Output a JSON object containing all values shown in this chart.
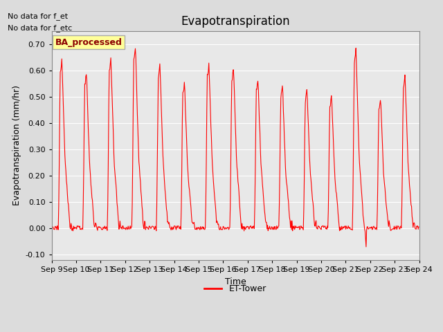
{
  "title": "Evapotranspiration",
  "ylabel": "Evapotranspiration (mm/hr)",
  "xlabel": "Time",
  "ylim": [
    -0.12,
    0.75
  ],
  "yticks": [
    -0.1,
    0.0,
    0.1,
    0.2,
    0.3,
    0.4,
    0.5,
    0.6,
    0.7
  ],
  "start_day": 9,
  "end_day": 24,
  "line_color": "#FF0000",
  "bg_color": "#E8E8E8",
  "fig_bg": "#DCDCDC",
  "no_data_text1": "No data for f_et",
  "no_data_text2": "No data for f_etc",
  "ba_label": "BA_processed",
  "legend_label": "ET-Tower",
  "daily_peaks": [
    0.65,
    0.6,
    0.65,
    0.7,
    0.63,
    0.56,
    0.63,
    0.62,
    0.57,
    0.55,
    0.53,
    0.51,
    0.69,
    0.5,
    0.59
  ],
  "daily_neg_dips": [
    -0.01,
    -0.01,
    -0.015,
    -0.01,
    -0.01,
    -0.01,
    -0.01,
    -0.01,
    -0.01,
    -0.01,
    -0.01,
    -0.06,
    -0.01,
    -0.01,
    -0.01
  ]
}
